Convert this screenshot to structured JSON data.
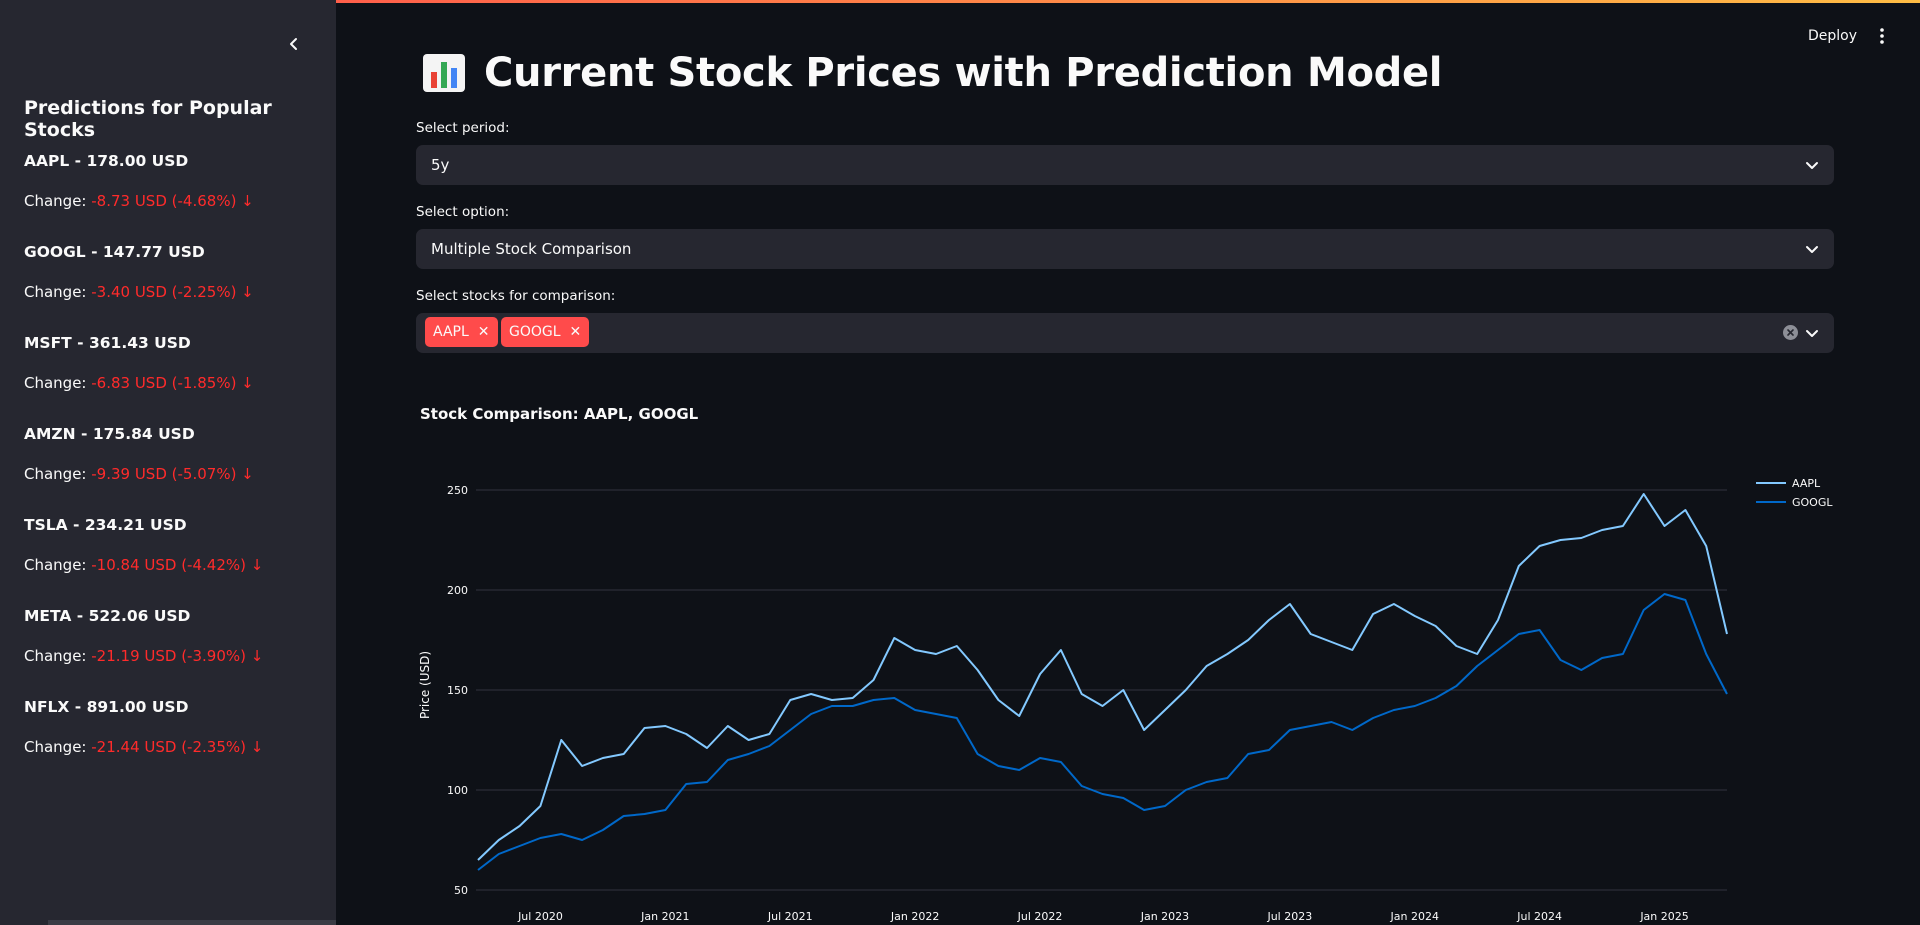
{
  "sidebar": {
    "title": "Predictions for Popular Stocks",
    "change_label": "Change:",
    "stocks": [
      {
        "name": "AAPL - 178.00 USD",
        "change": " -8.73 USD (-4.68%) ↓"
      },
      {
        "name": "GOOGL - 147.77 USD",
        "change": " -3.40 USD (-2.25%) ↓"
      },
      {
        "name": "MSFT - 361.43 USD",
        "change": " -6.83 USD (-1.85%) ↓"
      },
      {
        "name": "AMZN - 175.84 USD",
        "change": " -9.39 USD (-5.07%) ↓"
      },
      {
        "name": "TSLA - 234.21 USD",
        "change": " -10.84 USD (-4.42%) ↓"
      },
      {
        "name": "META - 522.06 USD",
        "change": " -21.19 USD (-3.90%) ↓"
      },
      {
        "name": "NFLX - 891.00 USD",
        "change": " -21.44 USD (-2.35%) ↓"
      }
    ]
  },
  "header": {
    "deploy_label": "Deploy",
    "icon": "bar-chart-icon",
    "title": "Current Stock Prices with Prediction Model"
  },
  "form": {
    "period_label": "Select period:",
    "period_value": "5y",
    "option_label": "Select option:",
    "option_value": "Multiple Stock Comparison",
    "stocks_label": "Select stocks for comparison:",
    "selected": [
      "AAPL",
      "GOOGL"
    ]
  },
  "colors": {
    "accent": "#ff4b4b",
    "negative": "#ff2b2b",
    "aapl": "#83c9ff",
    "googl": "#0068c9"
  },
  "chart_data": {
    "type": "line",
    "title": "Stock Comparison: AAPL, GOOGL",
    "ylabel": "Price (USD)",
    "xlabel": "",
    "ylim": [
      45,
      265
    ],
    "yticks": [
      50,
      100,
      150,
      200,
      250
    ],
    "xticks": [
      "Jul 2020",
      "Jan 2021",
      "Jul 2021",
      "Jan 2022",
      "Jul 2022",
      "Jan 2023",
      "Jul 2023",
      "Jan 2024",
      "Jul 2024",
      "Jan 2025"
    ],
    "grid": true,
    "legend": "top-right",
    "series": [
      {
        "name": "AAPL",
        "x": [
          "2020-04",
          "2020-05",
          "2020-06",
          "2020-07",
          "2020-08",
          "2020-09",
          "2020-10",
          "2020-11",
          "2020-12",
          "2021-01",
          "2021-02",
          "2021-03",
          "2021-04",
          "2021-05",
          "2021-06",
          "2021-07",
          "2021-08",
          "2021-09",
          "2021-10",
          "2021-11",
          "2021-12",
          "2022-01",
          "2022-02",
          "2022-03",
          "2022-04",
          "2022-05",
          "2022-06",
          "2022-07",
          "2022-08",
          "2022-09",
          "2022-10",
          "2022-11",
          "2022-12",
          "2023-01",
          "2023-02",
          "2023-03",
          "2023-04",
          "2023-05",
          "2023-06",
          "2023-07",
          "2023-08",
          "2023-09",
          "2023-10",
          "2023-11",
          "2023-12",
          "2024-01",
          "2024-02",
          "2024-03",
          "2024-04",
          "2024-05",
          "2024-06",
          "2024-07",
          "2024-08",
          "2024-09",
          "2024-10",
          "2024-11",
          "2024-12",
          "2025-01",
          "2025-02",
          "2025-03",
          "2025-04"
        ],
        "values": [
          65,
          75,
          82,
          92,
          125,
          112,
          116,
          118,
          131,
          132,
          128,
          121,
          132,
          125,
          128,
          145,
          148,
          145,
          146,
          155,
          176,
          170,
          168,
          172,
          160,
          145,
          137,
          158,
          170,
          148,
          142,
          150,
          130,
          140,
          150,
          162,
          168,
          175,
          185,
          193,
          178,
          174,
          170,
          188,
          193,
          187,
          182,
          172,
          168,
          185,
          212,
          222,
          225,
          226,
          230,
          232,
          248,
          232,
          240,
          222,
          178
        ]
      },
      {
        "name": "GOOGL",
        "x": [
          "2020-04",
          "2020-05",
          "2020-06",
          "2020-07",
          "2020-08",
          "2020-09",
          "2020-10",
          "2020-11",
          "2020-12",
          "2021-01",
          "2021-02",
          "2021-03",
          "2021-04",
          "2021-05",
          "2021-06",
          "2021-07",
          "2021-08",
          "2021-09",
          "2021-10",
          "2021-11",
          "2021-12",
          "2022-01",
          "2022-02",
          "2022-03",
          "2022-04",
          "2022-05",
          "2022-06",
          "2022-07",
          "2022-08",
          "2022-09",
          "2022-10",
          "2022-11",
          "2022-12",
          "2023-01",
          "2023-02",
          "2023-03",
          "2023-04",
          "2023-05",
          "2023-06",
          "2023-07",
          "2023-08",
          "2023-09",
          "2023-10",
          "2023-11",
          "2023-12",
          "2024-01",
          "2024-02",
          "2024-03",
          "2024-04",
          "2024-05",
          "2024-06",
          "2024-07",
          "2024-08",
          "2024-09",
          "2024-10",
          "2024-11",
          "2024-12",
          "2025-01",
          "2025-02",
          "2025-03",
          "2025-04"
        ],
        "values": [
          60,
          68,
          72,
          76,
          78,
          75,
          80,
          87,
          88,
          90,
          103,
          104,
          115,
          118,
          122,
          130,
          138,
          142,
          142,
          145,
          146,
          140,
          138,
          136,
          118,
          112,
          110,
          116,
          114,
          102,
          98,
          96,
          90,
          92,
          100,
          104,
          106,
          118,
          120,
          130,
          132,
          134,
          130,
          136,
          140,
          142,
          146,
          152,
          162,
          170,
          178,
          180,
          165,
          160,
          166,
          168,
          190,
          198,
          195,
          168,
          148
        ]
      }
    ]
  }
}
